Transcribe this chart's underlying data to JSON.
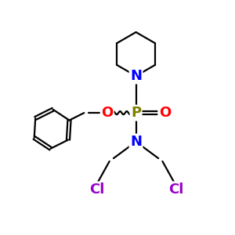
{
  "background_color": "#ffffff",
  "atom_colors": {
    "P": "#808000",
    "N": "#0000ff",
    "O": "#ff0000",
    "Cl": "#9900cc",
    "C": "#000000"
  },
  "lw": 1.6,
  "fs": 13
}
